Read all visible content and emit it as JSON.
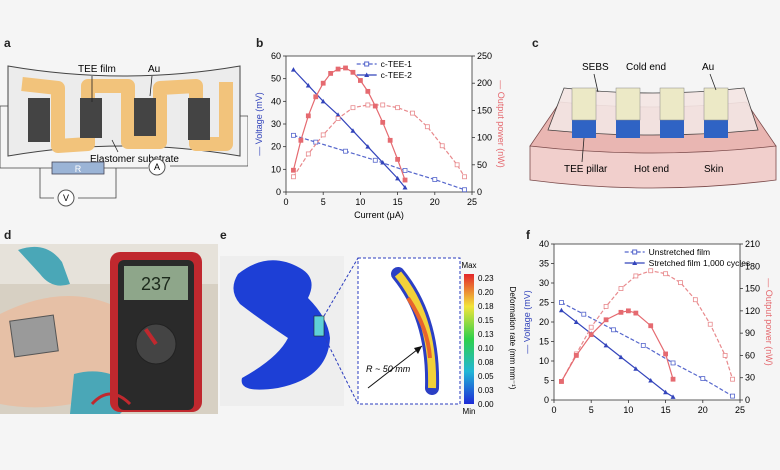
{
  "panels": {
    "a": {
      "label": "a",
      "tee_film": "TEE film",
      "au": "Au",
      "substrate": "Elastomer substrate",
      "r": "R",
      "v": "V",
      "a_meter": "A"
    },
    "c": {
      "label": "c",
      "sebs": "SEBS",
      "cold_end": "Cold end",
      "au": "Au",
      "tee_pillar": "TEE pillar",
      "hot_end": "Hot end",
      "skin": "Skin"
    },
    "d": {
      "label": "d",
      "display": "237"
    },
    "e": {
      "label": "e",
      "radius": "R ~ 50 mm",
      "colorbar_title": "Deformation rate (mm mm⁻¹)",
      "max": "Max",
      "min": "Min",
      "ticks": [
        "0.23",
        "0.20",
        "0.18",
        "0.15",
        "0.13",
        "0.10",
        "0.08",
        "0.05",
        "0.03",
        "0.00"
      ]
    }
  },
  "chart_data": [
    {
      "id": "b",
      "label": "b",
      "type": "line",
      "xlabel": "Current (μA)",
      "ylabel_left": "Voltage (mV)",
      "ylabel_right": "Output power (nW)",
      "xlim": [
        0,
        25
      ],
      "ylim_left": [
        0,
        60
      ],
      "ylim_right": [
        0,
        250
      ],
      "xticks": [
        0,
        5,
        10,
        15,
        20,
        25
      ],
      "yticks_left": [
        0,
        10,
        20,
        30,
        40,
        50,
        60
      ],
      "yticks_right": [
        0,
        50,
        100,
        150,
        200,
        250
      ],
      "legend_position": "top",
      "series": [
        {
          "name": "c-TEE-1",
          "axis": "left",
          "color": "#5566cc",
          "dashed": true,
          "x": [
            1,
            4,
            8,
            12,
            16,
            20,
            24
          ],
          "y": [
            25,
            22,
            18,
            14,
            9.5,
            5.5,
            1
          ]
        },
        {
          "name": "c-TEE-2",
          "axis": "left",
          "color": "#3344bb",
          "dashed": false,
          "x": [
            1,
            3,
            5,
            7,
            9,
            11,
            13,
            15,
            16
          ],
          "y": [
            54,
            47,
            40,
            34,
            27,
            20,
            13,
            6,
            2
          ]
        },
        {
          "name": "",
          "axis": "right",
          "color": "#e8898c",
          "dashed": true,
          "x": [
            1,
            3,
            5,
            7,
            9,
            11,
            13,
            15,
            17,
            19,
            21,
            23,
            24
          ],
          "y": [
            28,
            70,
            105,
            135,
            155,
            160,
            160,
            155,
            145,
            120,
            85,
            50,
            28
          ]
        },
        {
          "name": "",
          "axis": "right",
          "color": "#e56a70",
          "dashed": false,
          "x": [
            1,
            2,
            3,
            4,
            5,
            6,
            7,
            8,
            9,
            10,
            11,
            12,
            13,
            14,
            15,
            16
          ],
          "y": [
            40,
            95,
            140,
            175,
            200,
            218,
            226,
            228,
            220,
            205,
            185,
            158,
            128,
            95,
            60,
            22
          ]
        }
      ]
    },
    {
      "id": "f",
      "label": "f",
      "type": "line",
      "xlabel": "Current (μA)",
      "ylabel_left": "Voltage (mV)",
      "ylabel_right": "Output power (nW)",
      "xlim": [
        0,
        25
      ],
      "ylim_left": [
        0,
        40
      ],
      "ylim_right": [
        0,
        210
      ],
      "xticks": [
        0,
        5,
        10,
        15,
        20,
        25
      ],
      "yticks_left": [
        0,
        5,
        10,
        15,
        20,
        25,
        30,
        35,
        40
      ],
      "yticks_right": [
        0,
        30,
        60,
        90,
        120,
        150,
        180,
        210
      ],
      "legend_position": "top",
      "series": [
        {
          "name": "Unstretched film",
          "axis": "left",
          "color": "#5566cc",
          "dashed": true,
          "x": [
            1,
            4,
            8,
            12,
            16,
            20,
            24
          ],
          "y": [
            25,
            22,
            18,
            14,
            9.5,
            5.5,
            1
          ]
        },
        {
          "name": "Stretched film 1,000 cycles",
          "axis": "left",
          "color": "#3344bb",
          "dashed": false,
          "x": [
            1,
            3,
            5,
            7,
            9,
            11,
            13,
            15,
            16
          ],
          "y": [
            23,
            20,
            17,
            14,
            11,
            8,
            5,
            2,
            0.8
          ]
        },
        {
          "name": "",
          "axis": "right",
          "color": "#e8898c",
          "dashed": true,
          "x": [
            1,
            3,
            5,
            7,
            9,
            11,
            13,
            15,
            17,
            19,
            21,
            23,
            24
          ],
          "y": [
            25,
            62,
            98,
            126,
            150,
            167,
            174,
            170,
            158,
            135,
            102,
            60,
            28
          ]
        },
        {
          "name": "",
          "axis": "right",
          "color": "#e56a70",
          "dashed": false,
          "x": [
            1,
            3,
            5,
            7,
            9,
            10,
            11,
            13,
            15,
            16
          ],
          "y": [
            25,
            60,
            88,
            108,
            118,
            120,
            117,
            100,
            62,
            28
          ]
        }
      ]
    }
  ]
}
